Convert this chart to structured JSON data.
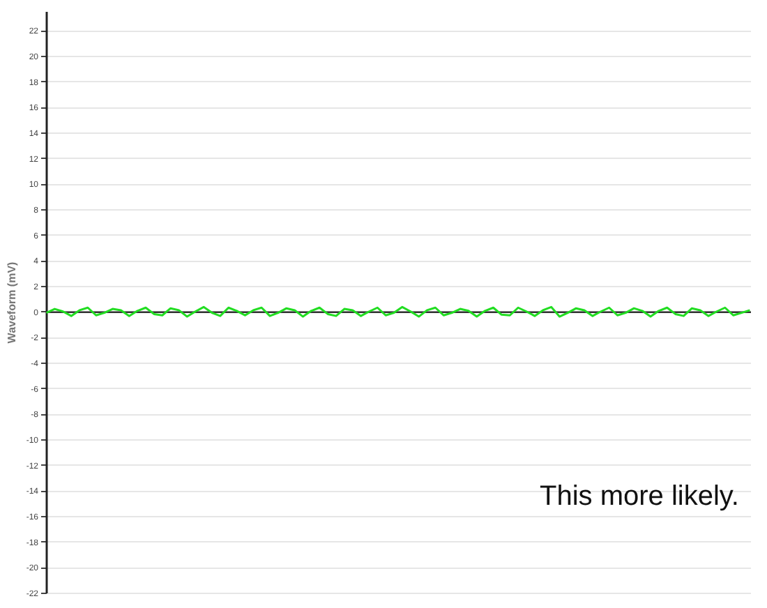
{
  "chart_data": {
    "type": "line",
    "ylabel": "Waveform (mV)",
    "annotations": [
      "This more likely."
    ],
    "categories": [
      null,
      null,
      null,
      null,
      null,
      null,
      null,
      null,
      null,
      null,
      null,
      null,
      null,
      null,
      null,
      null,
      null,
      null,
      null,
      null,
      null,
      null,
      null,
      null,
      null,
      null,
      null,
      null,
      null,
      null,
      null,
      null,
      null,
      null,
      null,
      null,
      null,
      null,
      null,
      null,
      null,
      null,
      null,
      null,
      null,
      null,
      null,
      null,
      null,
      null,
      null,
      null,
      null,
      null,
      null,
      null,
      null,
      null,
      null,
      null,
      null,
      null,
      null,
      null,
      null,
      null,
      null,
      null,
      null,
      null,
      null,
      null,
      null,
      null,
      null,
      null,
      null,
      null,
      null,
      null,
      null,
      null,
      null,
      null,
      null,
      null
    ],
    "series": [
      {
        "color": "#22dd22",
        "values": [
          -0.1,
          0.2,
          0.0,
          -0.35,
          0.1,
          0.3,
          -0.3,
          -0.1,
          0.2,
          0.1,
          -0.35,
          0.05,
          0.3,
          -0.2,
          -0.3,
          0.25,
          0.1,
          -0.4,
          0.0,
          0.35,
          -0.1,
          -0.35,
          0.3,
          0.05,
          -0.3,
          0.1,
          0.3,
          -0.35,
          -0.1,
          0.25,
          0.1,
          -0.4,
          0.05,
          0.3,
          -0.2,
          -0.35,
          0.2,
          0.1,
          -0.35,
          0.0,
          0.3,
          -0.3,
          -0.1,
          0.35,
          0.0,
          -0.4,
          0.1,
          0.3,
          -0.3,
          -0.1,
          0.2,
          0.05,
          -0.4,
          0.05,
          0.3,
          -0.25,
          -0.3,
          0.3,
          0.0,
          -0.35,
          0.1,
          0.35,
          -0.4,
          -0.1,
          0.25,
          0.1,
          -0.35,
          0.0,
          0.3,
          -0.3,
          -0.1,
          0.25,
          0.05,
          -0.4,
          0.05,
          0.3,
          -0.2,
          -0.35,
          0.25,
          0.1,
          -0.35,
          0.0,
          0.3,
          -0.3,
          -0.1,
          0.1
        ]
      }
    ],
    "ylim": [
      -22,
      23.5
    ],
    "yticks": [
      -22,
      -20,
      -18,
      -16,
      -14,
      -12,
      -10,
      -8,
      -6,
      -4,
      -2,
      0,
      2,
      4,
      6,
      8,
      10,
      12,
      14,
      16,
      18,
      20,
      22
    ],
    "grid": "y",
    "legend": false,
    "marker": "none",
    "line_style": "solid"
  }
}
